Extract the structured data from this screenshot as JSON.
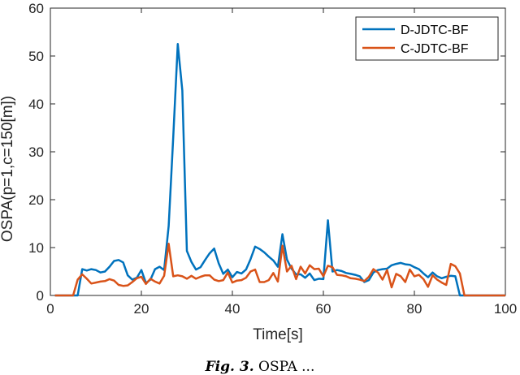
{
  "chart_data": {
    "type": "line",
    "xlabel": "Time[s]",
    "ylabel": "OSPA(p=1,c=150[m])",
    "xlim": [
      0,
      100
    ],
    "ylim": [
      0,
      60
    ],
    "xticks": [
      0,
      20,
      40,
      60,
      80,
      100
    ],
    "yticks": [
      0,
      10,
      20,
      30,
      40,
      50,
      60
    ],
    "grid": false,
    "legend_position": "top-right",
    "series": [
      {
        "name": "D-JDTC-BF",
        "color": "#0072BD",
        "x": [
          1,
          2,
          3,
          4,
          5,
          6,
          7,
          8,
          9,
          10,
          11,
          12,
          13,
          14,
          15,
          16,
          17,
          18,
          19,
          20,
          21,
          22,
          23,
          24,
          25,
          26,
          27,
          28,
          29,
          30,
          31,
          32,
          33,
          34,
          35,
          36,
          37,
          38,
          39,
          40,
          41,
          42,
          43,
          44,
          45,
          46,
          47,
          48,
          49,
          50,
          51,
          52,
          53,
          54,
          55,
          56,
          57,
          58,
          59,
          60,
          61,
          62,
          63,
          64,
          65,
          66,
          67,
          68,
          69,
          70,
          71,
          72,
          73,
          74,
          75,
          76,
          77,
          78,
          79,
          80,
          81,
          82,
          83,
          84,
          85,
          86,
          87,
          88,
          89,
          90,
          91,
          92,
          93,
          94,
          95,
          96,
          97,
          98,
          99,
          100
        ],
        "y": [
          0,
          0,
          0,
          0,
          0,
          0,
          5.5,
          5.2,
          5.5,
          5.3,
          4.8,
          5.0,
          6.0,
          7.2,
          7.4,
          6.9,
          4.2,
          3.3,
          3.7,
          5.3,
          2.6,
          3.3,
          5.5,
          6.0,
          5.3,
          14.5,
          33.0,
          52.5,
          42.8,
          9.3,
          7.0,
          5.4,
          5.9,
          7.4,
          8.8,
          9.8,
          6.7,
          4.5,
          5.4,
          3.8,
          4.9,
          4.6,
          5.4,
          7.6,
          10.2,
          9.7,
          9.0,
          8.1,
          7.3,
          6.0,
          12.8,
          7.5,
          5.6,
          4.4,
          4.4,
          3.7,
          4.6,
          3.2,
          3.5,
          3.4,
          15.7,
          5.0,
          5.3,
          5.1,
          4.7,
          4.5,
          4.3,
          4.0,
          2.8,
          3.2,
          4.8,
          5.3,
          5.5,
          5.6,
          6.3,
          6.6,
          6.8,
          6.5,
          6.4,
          5.9,
          5.5,
          4.6,
          3.8,
          4.8,
          4.0,
          3.6,
          3.9,
          4.1,
          4.0,
          0,
          0,
          0,
          0,
          0,
          0,
          0,
          0,
          0,
          0,
          0
        ]
      },
      {
        "name": "C-JDTC-BF",
        "color": "#D95319",
        "x": [
          1,
          2,
          3,
          4,
          5,
          6,
          7,
          8,
          9,
          10,
          11,
          12,
          13,
          14,
          15,
          16,
          17,
          18,
          19,
          20,
          21,
          22,
          23,
          24,
          25,
          26,
          27,
          28,
          29,
          30,
          31,
          32,
          33,
          34,
          35,
          36,
          37,
          38,
          39,
          40,
          41,
          42,
          43,
          44,
          45,
          46,
          47,
          48,
          49,
          50,
          51,
          52,
          53,
          54,
          55,
          56,
          57,
          58,
          59,
          60,
          61,
          62,
          63,
          64,
          65,
          66,
          67,
          68,
          69,
          70,
          71,
          72,
          73,
          74,
          75,
          76,
          77,
          78,
          79,
          80,
          81,
          82,
          83,
          84,
          85,
          86,
          87,
          88,
          89,
          90,
          91,
          92,
          93,
          94,
          95,
          96,
          97,
          98,
          99,
          100
        ],
        "y": [
          0,
          0,
          0,
          0,
          0,
          3.3,
          4.4,
          3.5,
          2.5,
          2.7,
          2.9,
          3.0,
          3.4,
          3.1,
          2.2,
          2.0,
          2.1,
          2.8,
          3.6,
          3.9,
          2.4,
          3.5,
          2.9,
          2.5,
          4.1,
          10.8,
          4.0,
          4.2,
          4.0,
          3.5,
          4.1,
          3.5,
          3.9,
          4.2,
          4.2,
          3.3,
          3.0,
          3.2,
          4.8,
          2.7,
          3.1,
          3.2,
          3.7,
          5.0,
          5.4,
          2.8,
          2.8,
          3.2,
          4.7,
          2.9,
          10.4,
          5.0,
          6.2,
          3.4,
          6.0,
          4.6,
          6.3,
          5.5,
          5.6,
          4.0,
          6.2,
          5.9,
          4.3,
          4.2,
          4.0,
          3.6,
          3.5,
          3.3,
          3.0,
          3.9,
          5.5,
          4.8,
          3.3,
          5.3,
          1.7,
          4.5,
          4.0,
          2.8,
          5.4,
          4.0,
          4.3,
          3.4,
          1.8,
          4.2,
          3.3,
          2.7,
          2.2,
          6.6,
          6.1,
          4.6,
          0,
          0,
          0,
          0,
          0,
          0,
          0,
          0,
          0,
          0
        ]
      }
    ]
  },
  "caption": {
    "label": "Fig. 3.",
    "text": "OSPA ..."
  }
}
